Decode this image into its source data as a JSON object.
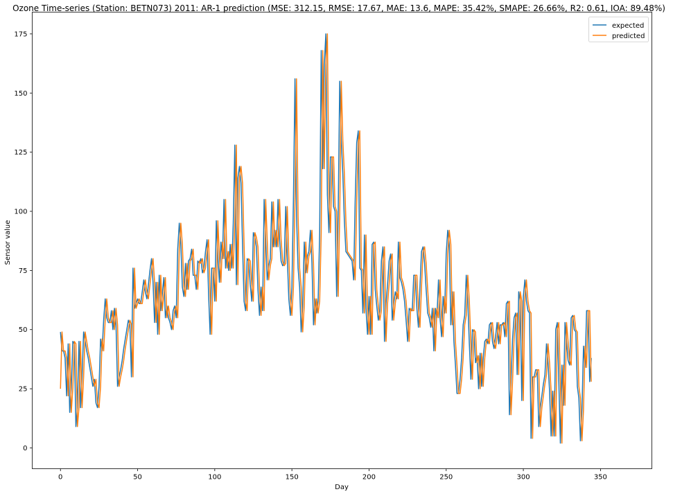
{
  "chart_data": {
    "type": "line",
    "title": "Ozone Time-series (Station: BETN073) 2011: AR-1 prediction (MSE: 312.15, RMSE: 17.67, MAE: 13.6, MAPE: 35.42%, SMAPE: 26.66%, R2: 0.61, IOA: 89.48%)",
    "xlabel": "Day",
    "ylabel": "Sensor value",
    "xlim": [
      -18.3,
      383.3
    ],
    "ylim": [
      -8.8,
      184.2
    ],
    "xticks": [
      0,
      50,
      100,
      150,
      200,
      250,
      300,
      350
    ],
    "yticks": [
      0,
      25,
      50,
      75,
      100,
      125,
      150,
      175
    ],
    "grid": false,
    "legend_position": "top-right",
    "series": [
      {
        "name": "expected",
        "color": "#1f77b4",
        "values": [
          49,
          41,
          41,
          38,
          22,
          44,
          15,
          25,
          45,
          44,
          9,
          17,
          45,
          17,
          30,
          49,
          45,
          41,
          38,
          34,
          30,
          26,
          29,
          19,
          17,
          26,
          46,
          41,
          54,
          63,
          55,
          53,
          53,
          58,
          50,
          59,
          52,
          26,
          30,
          33,
          37,
          42,
          46,
          50,
          54,
          52,
          30,
          76,
          59,
          61,
          63,
          61,
          61,
          66,
          71,
          66,
          63,
          69,
          75,
          80,
          70,
          53,
          70,
          48,
          73,
          58,
          65,
          72,
          55,
          60,
          55,
          53,
          50,
          58,
          60,
          55,
          84,
          95,
          86,
          68,
          64,
          78,
          67,
          79,
          80,
          84,
          73,
          73,
          67,
          79,
          78,
          80,
          74,
          76,
          83,
          88,
          65,
          48,
          76,
          76,
          62,
          96,
          81,
          70,
          87,
          80,
          105,
          76,
          83,
          75,
          86,
          76,
          95,
          128,
          69,
          114,
          119,
          112,
          86,
          62,
          58,
          80,
          79,
          69,
          62,
          91,
          89,
          85,
          67,
          56,
          68,
          58,
          105,
          88,
          71,
          77,
          80,
          104,
          85,
          92,
          85,
          105,
          88,
          79,
          77,
          78,
          102,
          81,
          63,
          56,
          68,
          105,
          156,
          98,
          76,
          68,
          49,
          60,
          87,
          74,
          81,
          83,
          92,
          78,
          52,
          63,
          57,
          62,
          91,
          168,
          118,
          162,
          175,
          107,
          91,
          123,
          123,
          102,
          100,
          64,
          99,
          155,
          130,
          116,
          96,
          83,
          82,
          81,
          80,
          79,
          71,
          104,
          129,
          134,
          76,
          75,
          57,
          90,
          59,
          48,
          64,
          48,
          86,
          87,
          67,
          60,
          54,
          58,
          79,
          85,
          45,
          61,
          69,
          79,
          82,
          54,
          61,
          66,
          63,
          87,
          72,
          70,
          67,
          62,
          54,
          45,
          59,
          58,
          58,
          73,
          73,
          59,
          51,
          68,
          83,
          85,
          78,
          67,
          57,
          55,
          51,
          59,
          41,
          59,
          55,
          71,
          55,
          47,
          64,
          57,
          82,
          92,
          86,
          52,
          66,
          45,
          35,
          23,
          23,
          29,
          38,
          52,
          56,
          73,
          62,
          44,
          29,
          50,
          49,
          36,
          39,
          25,
          40,
          26,
          38,
          45,
          46,
          44,
          52,
          53,
          45,
          42,
          47,
          53,
          44,
          52,
          52,
          53,
          47,
          61,
          62,
          14,
          28,
          46,
          55,
          57,
          31,
          66,
          62,
          20,
          64,
          71,
          62,
          58,
          57,
          4,
          30,
          30,
          33,
          33,
          9,
          17,
          22,
          27,
          31,
          44,
          36,
          24,
          5,
          24,
          5,
          50,
          53,
          28,
          2,
          35,
          18,
          53,
          45,
          37,
          35,
          55,
          56,
          50,
          49,
          26,
          21,
          3,
          16,
          43,
          34,
          58,
          58,
          28,
          38
        ]
      },
      {
        "name": "predicted",
        "color": "#ff7f0e",
        "values": [
          25,
          49,
          41,
          41,
          38,
          22,
          44,
          15,
          25,
          45,
          44,
          9,
          17,
          45,
          17,
          30,
          49,
          45,
          41,
          38,
          34,
          30,
          26,
          29,
          19,
          17,
          26,
          46,
          41,
          54,
          63,
          55,
          53,
          53,
          58,
          50,
          59,
          52,
          26,
          30,
          33,
          37,
          42,
          46,
          50,
          54,
          52,
          30,
          76,
          59,
          61,
          63,
          61,
          61,
          66,
          71,
          66,
          63,
          69,
          75,
          80,
          70,
          53,
          70,
          48,
          73,
          58,
          65,
          72,
          55,
          60,
          55,
          53,
          50,
          58,
          60,
          55,
          84,
          95,
          86,
          68,
          64,
          78,
          67,
          79,
          80,
          84,
          73,
          73,
          67,
          79,
          78,
          80,
          74,
          76,
          83,
          88,
          65,
          48,
          76,
          76,
          62,
          96,
          81,
          70,
          87,
          80,
          105,
          76,
          83,
          75,
          86,
          76,
          95,
          128,
          69,
          114,
          119,
          112,
          86,
          62,
          58,
          80,
          79,
          69,
          62,
          91,
          89,
          85,
          67,
          56,
          68,
          58,
          105,
          88,
          71,
          77,
          80,
          104,
          85,
          92,
          85,
          105,
          88,
          79,
          77,
          78,
          102,
          81,
          63,
          56,
          68,
          105,
          156,
          98,
          76,
          68,
          49,
          60,
          87,
          74,
          81,
          83,
          92,
          78,
          52,
          63,
          57,
          62,
          91,
          168,
          118,
          162,
          175,
          107,
          91,
          123,
          123,
          102,
          100,
          64,
          99,
          155,
          130,
          116,
          96,
          83,
          82,
          81,
          80,
          79,
          71,
          104,
          129,
          134,
          76,
          75,
          57,
          90,
          59,
          48,
          64,
          48,
          86,
          87,
          67,
          60,
          54,
          58,
          79,
          85,
          45,
          61,
          69,
          79,
          82,
          54,
          61,
          66,
          63,
          87,
          72,
          70,
          67,
          62,
          54,
          45,
          59,
          58,
          58,
          73,
          73,
          59,
          51,
          68,
          83,
          85,
          78,
          67,
          57,
          55,
          51,
          59,
          41,
          59,
          55,
          71,
          55,
          47,
          64,
          57,
          82,
          92,
          86,
          52,
          66,
          45,
          35,
          23,
          23,
          29,
          38,
          52,
          56,
          73,
          62,
          44,
          29,
          50,
          49,
          36,
          39,
          25,
          40,
          26,
          38,
          45,
          46,
          44,
          52,
          53,
          45,
          42,
          47,
          53,
          44,
          52,
          52,
          53,
          47,
          61,
          62,
          14,
          28,
          46,
          55,
          57,
          31,
          66,
          62,
          20,
          64,
          71,
          62,
          58,
          57,
          4,
          30,
          30,
          33,
          33,
          9,
          17,
          22,
          27,
          31,
          44,
          36,
          24,
          5,
          24,
          5,
          50,
          53,
          28,
          2,
          35,
          18,
          53,
          45,
          37,
          35,
          55,
          56,
          50,
          49,
          26,
          21,
          3,
          16,
          43,
          34,
          58,
          58,
          28
        ]
      }
    ]
  }
}
